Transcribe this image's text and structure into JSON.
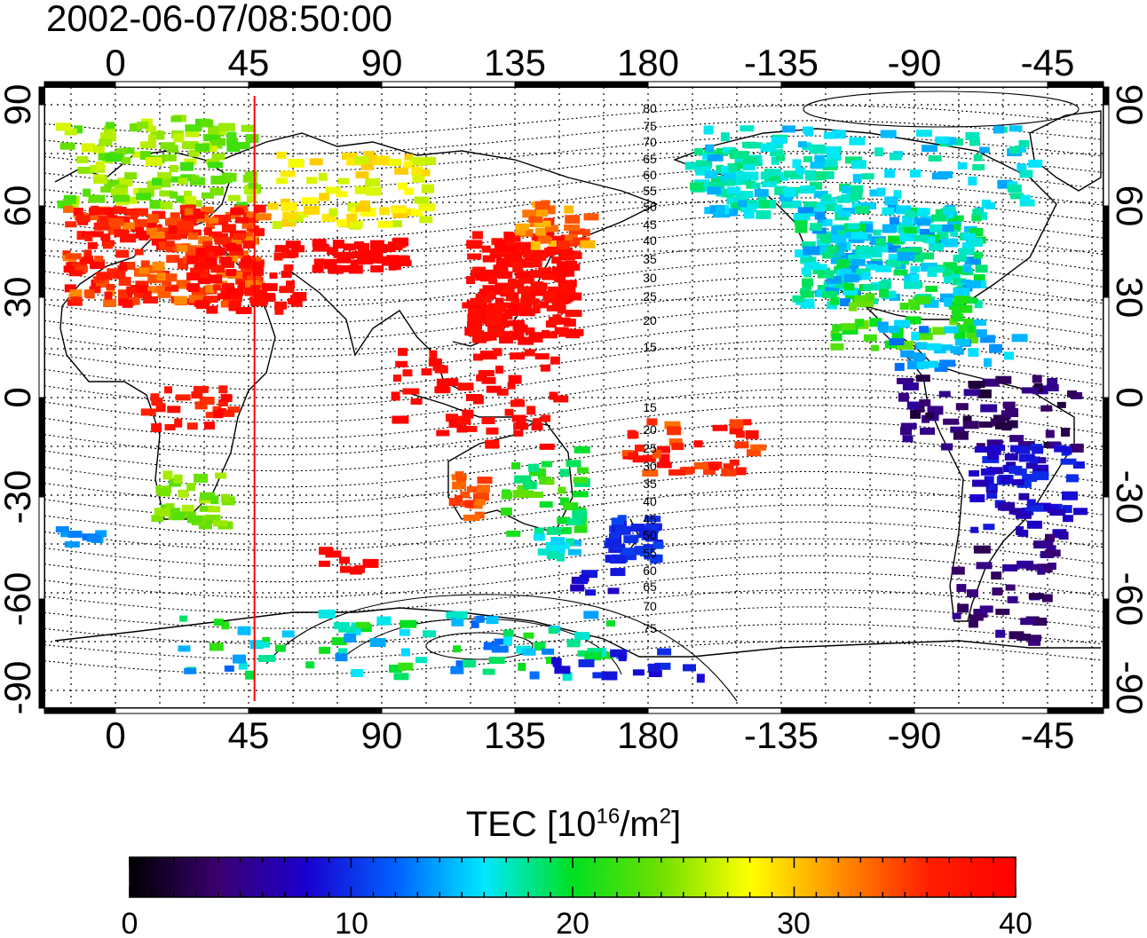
{
  "title": "2002-06-07/08:50:00",
  "map": {
    "x_axis_ticks": [
      "0",
      "45",
      "90",
      "135",
      "180",
      "-135",
      "-90",
      "-45"
    ],
    "y_axis_ticks": [
      "90",
      "60",
      "30",
      "0",
      "-30",
      "-60",
      "-90"
    ],
    "contour_labels_north": [
      "80",
      "75",
      "70",
      "65",
      "60",
      "55",
      "50",
      "45",
      "40",
      "35",
      "30",
      "25",
      "20",
      "15"
    ],
    "contour_labels_south": [
      "15",
      "20",
      "25",
      "30",
      "35",
      "40",
      "45",
      "50",
      "55",
      "60",
      "65",
      "70",
      "75"
    ],
    "marker_longitude": 47,
    "marker_color": "#ff0000"
  },
  "colorbar": {
    "label_main": "TEC  [10",
    "label_exp1": "16",
    "label_mid": "/m",
    "label_exp2": "2",
    "label_end": "]",
    "ticks": [
      "0",
      "10",
      "20",
      "30",
      "40"
    ],
    "min": 0,
    "max": 40,
    "colormap": [
      "#000000",
      "#3b0070",
      "#1a00d0",
      "#0060ff",
      "#00e8ff",
      "#00e020",
      "#70e000",
      "#ffff00",
      "#ff9000",
      "#ff2000",
      "#ff0000"
    ]
  }
}
